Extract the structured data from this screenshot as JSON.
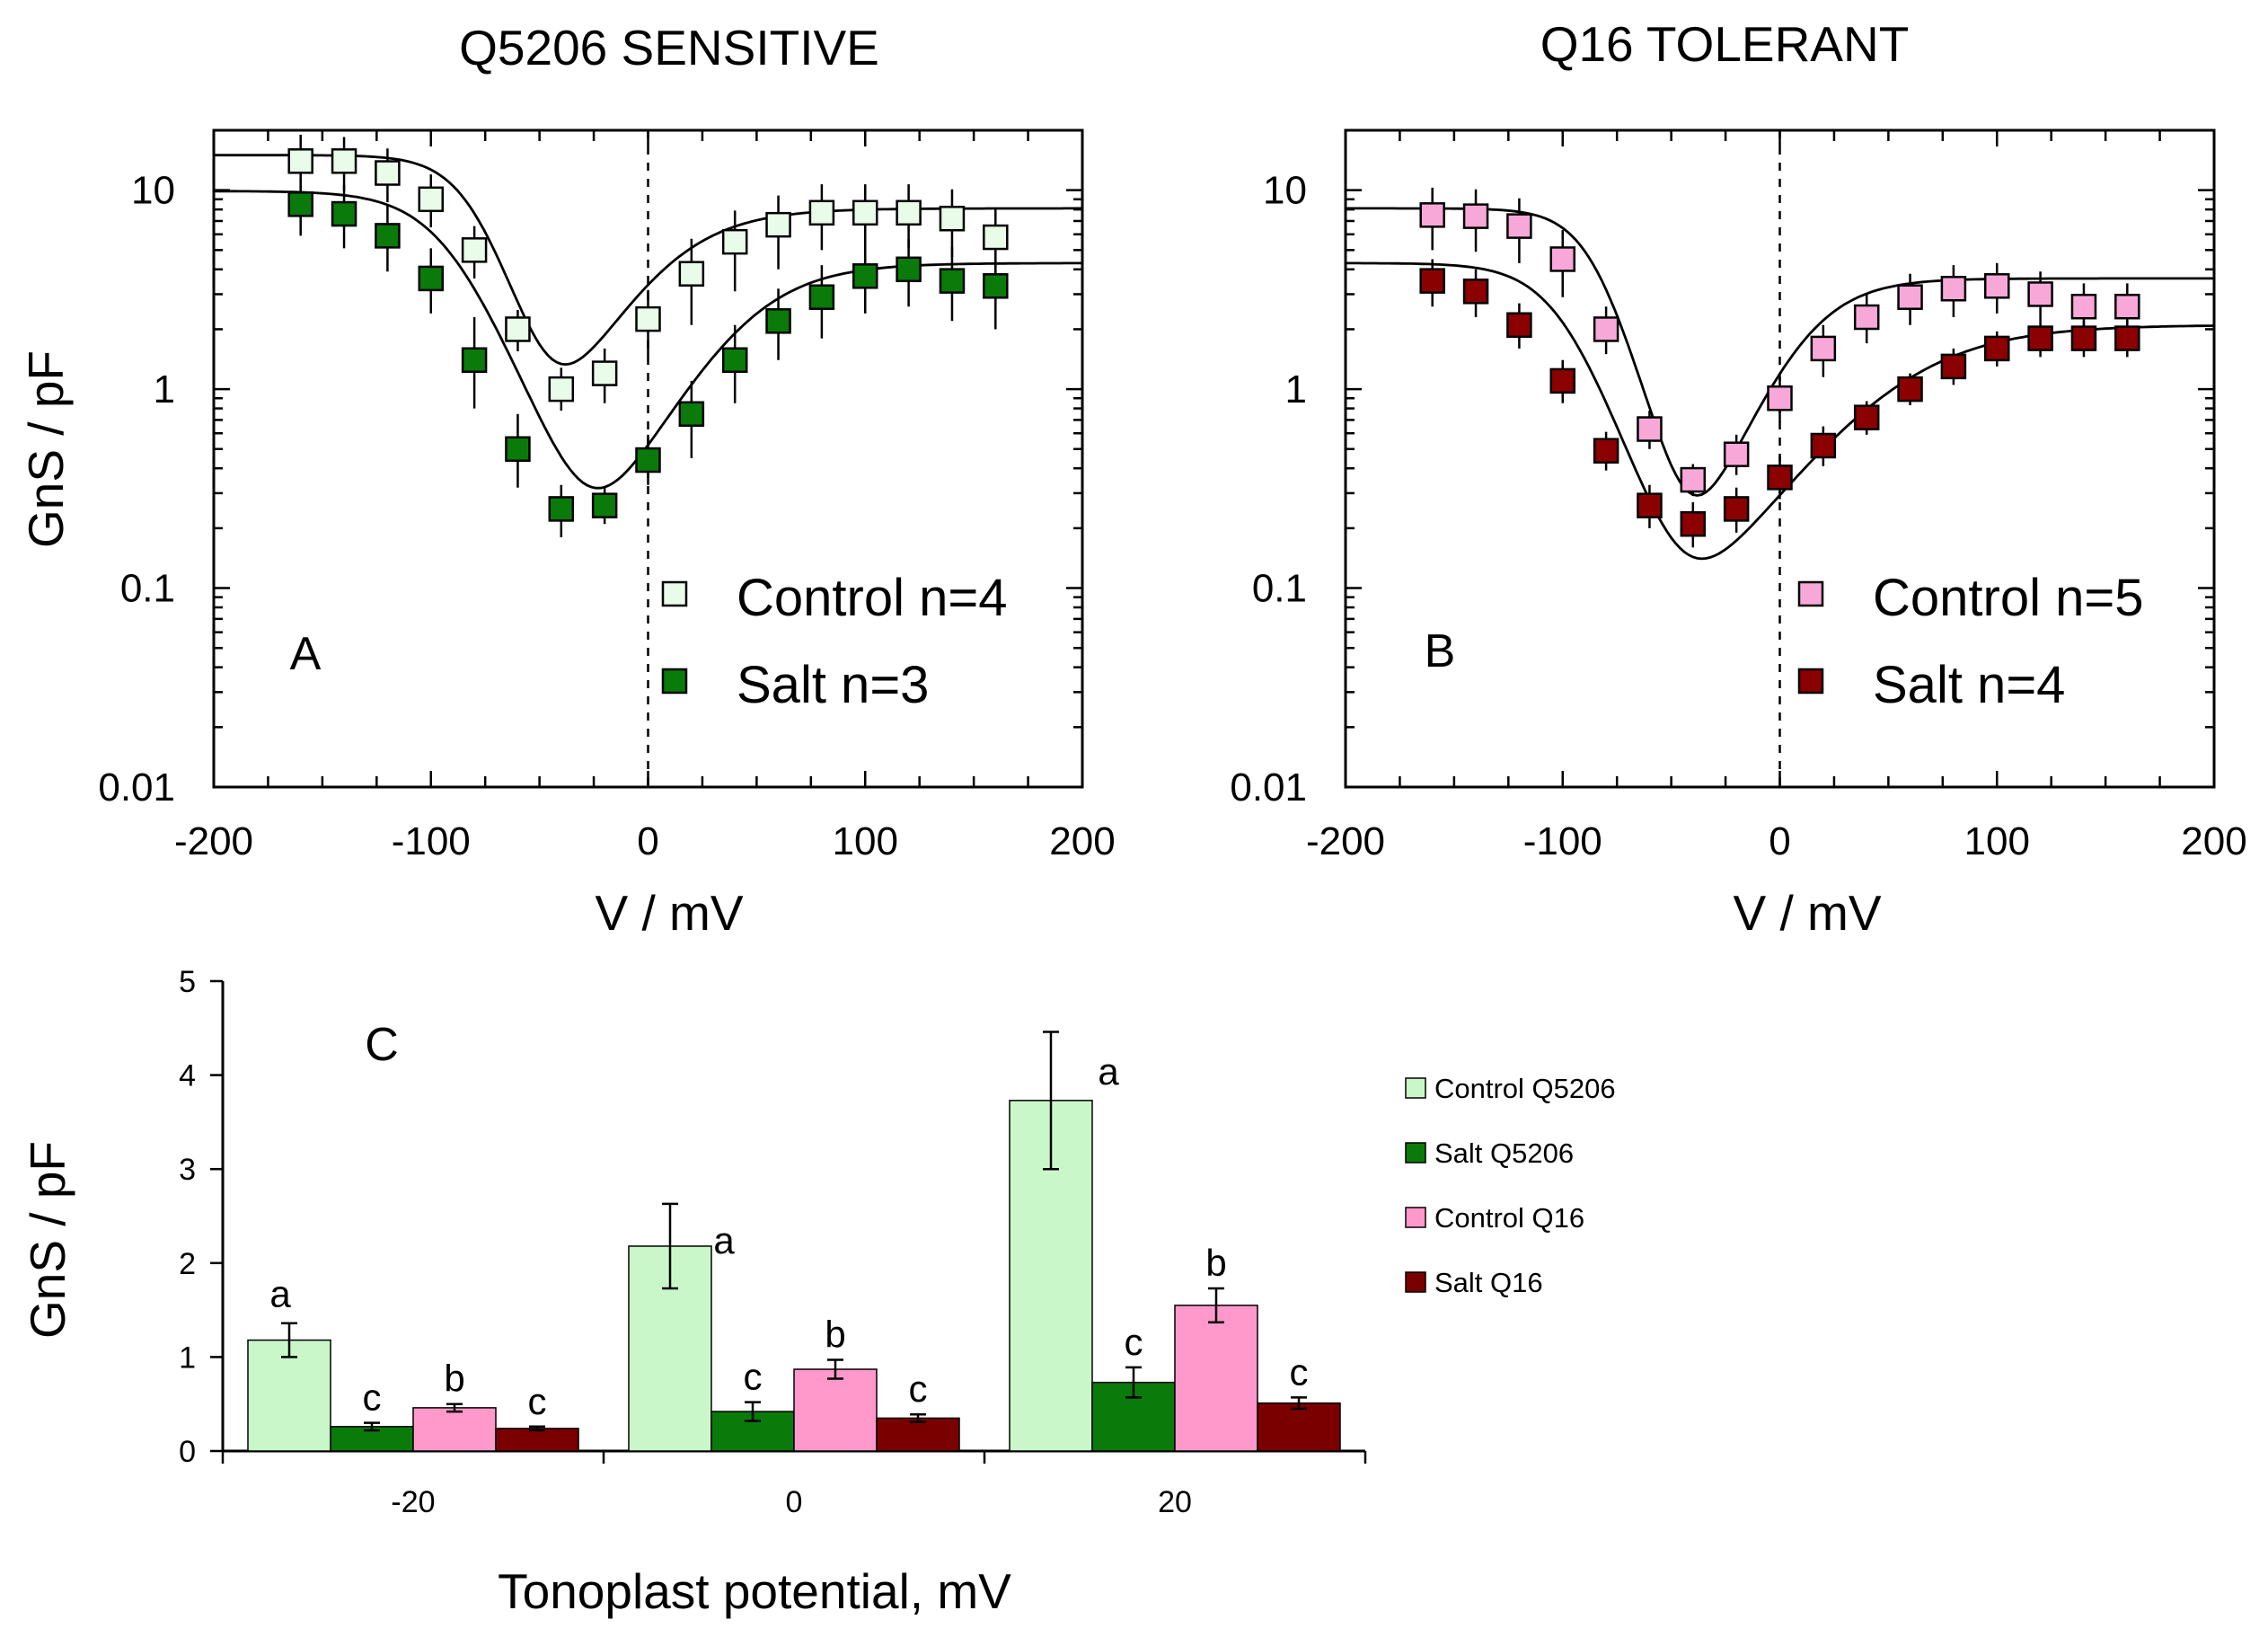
{
  "chart_data": [
    {
      "id": "A",
      "type": "scatter",
      "title": "Q5206  SENSITIVE",
      "panel_letter": "A",
      "xlabel": "V / mV",
      "ylabel": "GnS / pF",
      "xlim": [
        -200,
        200
      ],
      "ylim": [
        0.01,
        20
      ],
      "yscale": "log",
      "xticks": [
        "-200",
        "-100",
        "0",
        "100",
        "200"
      ],
      "yticks": [
        "0.01",
        "0.1",
        "1",
        "10"
      ],
      "xtick_values": [
        -200,
        -100,
        0,
        100,
        200
      ],
      "ytick_values": [
        0.01,
        0.1,
        1,
        10
      ],
      "vertical_dashed_at": 0,
      "legend_position": "lower-right",
      "series": [
        {
          "name": "Control n=4",
          "fill": "#e9fbe9",
          "x": [
            -160,
            -140,
            -120,
            -100,
            -80,
            -60,
            -40,
            -20,
            0,
            20,
            40,
            60,
            80,
            100,
            120,
            140,
            160
          ],
          "y": [
            14,
            14,
            12.2,
            9,
            5,
            2,
            1.0,
            1.2,
            2.25,
            3.8,
            5.5,
            6.7,
            7.7,
            7.7,
            7.7,
            7.2,
            5.8
          ],
          "err_up": [
            5,
            4.5,
            4,
            3,
            1.6,
            0.5,
            0.28,
            0.4,
            0.9,
            1.9,
            2.4,
            2.7,
            3,
            3,
            3,
            2.9,
            2.3
          ],
          "err_down": [
            4,
            4,
            3.5,
            2.5,
            1.4,
            0.45,
            0.22,
            0.35,
            0.8,
            1.7,
            2.4,
            2.7,
            2.7,
            2.7,
            2.6,
            2.6,
            2.2
          ],
          "fit": {
            "gmax_left": 15,
            "gmin": 0.8,
            "vl": -80,
            "kl": 12,
            "gmax_right": 8.1,
            "vr": 8,
            "kr": 22
          }
        },
        {
          "name": "Salt n=3",
          "fill": "#0a7a0a",
          "x": [
            -160,
            -140,
            -120,
            -100,
            -80,
            -60,
            -40,
            -20,
            0,
            20,
            40,
            60,
            80,
            100,
            120,
            140,
            160
          ],
          "y": [
            8.5,
            7.6,
            5.9,
            3.6,
            1.4,
            0.5,
            0.25,
            0.26,
            0.44,
            0.75,
            1.4,
            2.2,
            2.9,
            3.7,
            4,
            3.5,
            3.3
          ],
          "err_up": [
            3,
            3,
            2.5,
            1.5,
            0.9,
            0.25,
            0.08,
            0.06,
            0.15,
            0.35,
            0.7,
            1,
            1.3,
            1.5,
            1.7,
            1.7,
            1.6
          ],
          "err_down": [
            2.6,
            2.5,
            2,
            1.2,
            0.6,
            0.18,
            0.07,
            0.05,
            0.11,
            0.3,
            0.55,
            0.8,
            1.1,
            1.3,
            1.4,
            1.3,
            1.3
          ],
          "fit": {
            "gmax_left": 9.9,
            "gmin": 0.2,
            "vl": -92,
            "kl": 16,
            "gmax_right": 4.3,
            "vr": 45,
            "kr": 22
          }
        }
      ]
    },
    {
      "id": "B",
      "type": "scatter",
      "title": "Q16  TOLERANT",
      "panel_letter": "B",
      "xlabel": "V / mV",
      "ylabel": "",
      "xlim": [
        -200,
        200
      ],
      "ylim": [
        0.01,
        20
      ],
      "yscale": "log",
      "xticks": [
        "-200",
        "-100",
        "0",
        "100",
        "200"
      ],
      "yticks": [
        "0.01",
        "0.1",
        "1",
        "10"
      ],
      "xtick_values": [
        -200,
        -100,
        0,
        100,
        200
      ],
      "ytick_values": [
        0.01,
        0.1,
        1,
        10
      ],
      "vertical_dashed_at": 0,
      "legend_position": "lower-right",
      "series": [
        {
          "name": "Control n=5",
          "fill": "#f7a8d8",
          "x": [
            -160,
            -140,
            -120,
            -100,
            -80,
            -60,
            -40,
            -20,
            0,
            20,
            40,
            60,
            80,
            100,
            120,
            140,
            160
          ],
          "y": [
            7.5,
            7.4,
            6.6,
            4.5,
            2,
            0.63,
            0.35,
            0.47,
            0.9,
            1.6,
            2.3,
            2.9,
            3.2,
            3.3,
            3.0,
            2.6,
            2.6
          ],
          "err_up": [
            2.8,
            2.7,
            2.5,
            1.8,
            0.6,
            0.15,
            0.07,
            0.12,
            0.25,
            0.5,
            0.7,
            0.9,
            1,
            1,
            0.9,
            0.8,
            0.8
          ],
          "err_down": [
            2.5,
            2.5,
            2.3,
            1.6,
            0.5,
            0.13,
            0.06,
            0.1,
            0.22,
            0.45,
            0.6,
            0.8,
            0.9,
            0.9,
            0.8,
            0.7,
            0.7
          ],
          "fit": {
            "gmax_left": 8.1,
            "gmin": 0.3,
            "vl": -85,
            "kl": 11,
            "gmax_right": 3.6,
            "vr": 12,
            "kr": 17
          }
        },
        {
          "name": "Salt n=4",
          "fill": "#8b0000",
          "x": [
            -160,
            -140,
            -120,
            -100,
            -80,
            -60,
            -40,
            -20,
            0,
            20,
            40,
            60,
            80,
            100,
            120,
            140,
            160
          ],
          "y": [
            3.5,
            3.1,
            2.1,
            1.1,
            0.49,
            0.26,
            0.21,
            0.25,
            0.36,
            0.52,
            0.72,
            1.0,
            1.3,
            1.6,
            1.8,
            1.8,
            1.8
          ],
          "err_up": [
            1,
            0.9,
            0.6,
            0.3,
            0.12,
            0.07,
            0.06,
            0.07,
            0.1,
            0.13,
            0.15,
            0.2,
            0.3,
            0.35,
            0.4,
            0.4,
            0.4
          ],
          "err_down": [
            0.9,
            0.8,
            0.5,
            0.25,
            0.1,
            0.06,
            0.05,
            0.06,
            0.08,
            0.11,
            0.13,
            0.17,
            0.25,
            0.3,
            0.35,
            0.35,
            0.35
          ],
          "fit": {
            "gmax_left": 4.3,
            "gmin": 0.16,
            "vl": -100,
            "kl": 14,
            "gmax_right": 2.1,
            "vr": 55,
            "kr": 30
          }
        }
      ]
    },
    {
      "id": "C",
      "type": "bar",
      "panel_letter": "C",
      "xlabel": "Tonoplast potential, mV",
      "ylabel": "GnS / pF",
      "categories": [
        "-20",
        "0",
        "20"
      ],
      "ylim": [
        0,
        5
      ],
      "yticks": [
        "0",
        "1",
        "2",
        "3",
        "4",
        "5"
      ],
      "ytick_values": [
        0,
        1,
        2,
        3,
        4,
        5
      ],
      "legend_position": "right",
      "series": [
        {
          "name": "Control Q5206",
          "fill": "#c9f7c9",
          "values": [
            1.18,
            2.18,
            3.73
          ],
          "errors": [
            0.18,
            0.45,
            0.73
          ],
          "letters": [
            "a",
            "a",
            "a"
          ]
        },
        {
          "name": "Salt Q5206",
          "fill": "#0a7a0a",
          "values": [
            0.26,
            0.42,
            0.73
          ],
          "errors": [
            0.04,
            0.1,
            0.16
          ],
          "letters": [
            "c",
            "c",
            "c"
          ]
        },
        {
          "name": "Control Q16",
          "fill": "#ff99cc",
          "values": [
            0.46,
            0.87,
            1.55
          ],
          "errors": [
            0.04,
            0.1,
            0.18
          ],
          "letters": [
            "b",
            "b",
            "b"
          ]
        },
        {
          "name": "Salt Q16",
          "fill": "#7a0000",
          "values": [
            0.24,
            0.35,
            0.51
          ],
          "errors": [
            0.02,
            0.04,
            0.06
          ],
          "letters": [
            "c",
            "c",
            "c"
          ]
        }
      ]
    }
  ]
}
